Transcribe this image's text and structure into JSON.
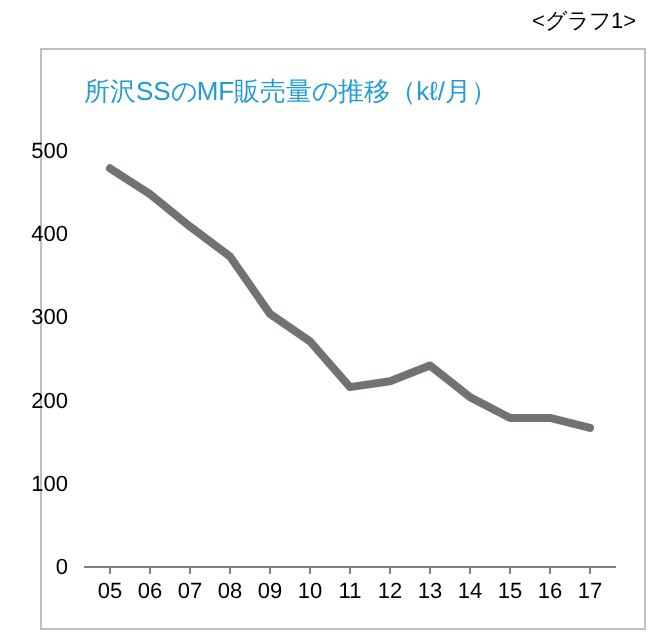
{
  "chart_data": {
    "type": "line",
    "title": "所沢SSのMF販売量の推移（kℓ/月）",
    "annotations": [
      "<グラフ1>"
    ],
    "categories": [
      "05",
      "06",
      "07",
      "08",
      "09",
      "10",
      "11",
      "12",
      "13",
      "14",
      "15",
      "16",
      "17"
    ],
    "series": [
      {
        "color": "#767171",
        "values": [
          478,
          447,
          408,
          372,
          303,
          270,
          215,
          222,
          241,
          203,
          178,
          178,
          166
        ]
      }
    ],
    "ylim": [
      0,
      500
    ],
    "yticks": [
      0,
      100,
      200,
      300,
      400,
      500
    ],
    "grid": false,
    "marker": "none",
    "line_style": "solid"
  }
}
